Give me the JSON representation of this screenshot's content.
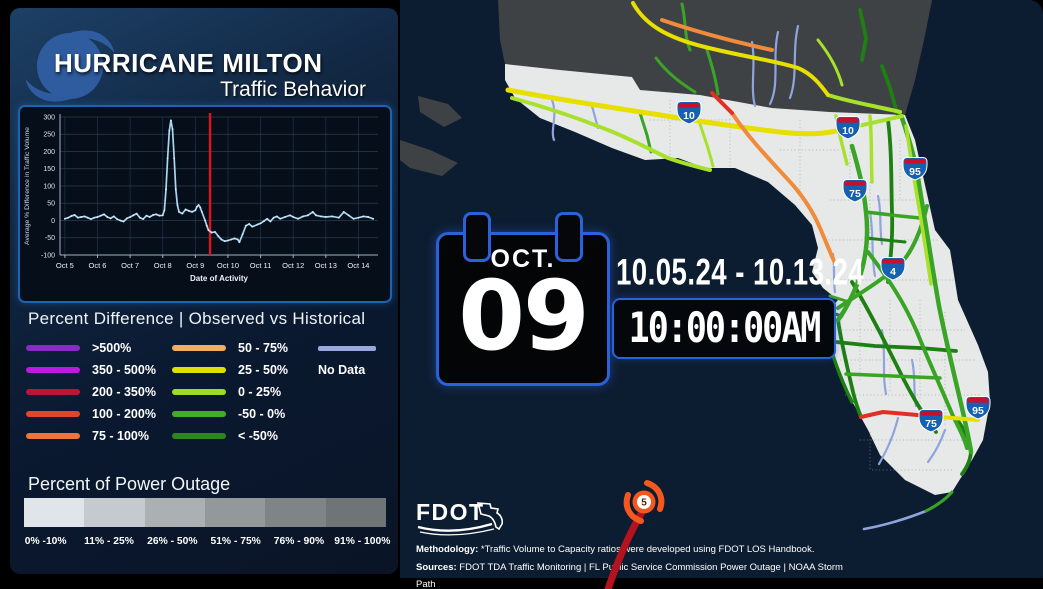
{
  "header": {
    "title": "HURRICANE MILTON",
    "subtitle": "Traffic Behavior"
  },
  "chart_data": {
    "type": "line",
    "title": "",
    "xlabel": "Date of Activity",
    "ylabel": "Average % Difference in Traffic Volume",
    "xlim": [
      4.85,
      14.6
    ],
    "ylim": [
      -100,
      300
    ],
    "y_ticks": [
      300,
      250,
      200,
      150,
      100,
      50,
      0,
      -50,
      -100
    ],
    "x_tick_days": [
      5,
      6,
      7,
      8,
      9,
      10,
      11,
      12,
      13,
      14
    ],
    "x_tick_labels": [
      "Oct 5",
      "Oct 6",
      "Oct 7",
      "Oct 8",
      "Oct 9",
      "Oct 10",
      "Oct 11",
      "Oct 12",
      "Oct 13",
      "Oct 14"
    ],
    "grid": true,
    "line_color": "#a9d7ef",
    "series": [
      {
        "name": "Average % Difference in Traffic Volume",
        "x": [
          5.0,
          5.1,
          5.2,
          5.3,
          5.4,
          5.5,
          5.6,
          5.7,
          5.8,
          5.9,
          6.0,
          6.1,
          6.2,
          6.3,
          6.4,
          6.5,
          6.6,
          6.7,
          6.8,
          6.9,
          7.0,
          7.1,
          7.2,
          7.3,
          7.4,
          7.5,
          7.6,
          7.7,
          7.8,
          7.9,
          8.0,
          8.05,
          8.1,
          8.15,
          8.2,
          8.25,
          8.3,
          8.35,
          8.4,
          8.45,
          8.5,
          8.6,
          8.7,
          8.8,
          8.9,
          9.0,
          9.05,
          9.1,
          9.15,
          9.2,
          9.3,
          9.35,
          9.4,
          9.5,
          9.6,
          9.7,
          9.8,
          9.9,
          10.0,
          10.1,
          10.2,
          10.3,
          10.35,
          10.45,
          10.55,
          10.65,
          10.75,
          10.9,
          11.0,
          11.1,
          11.2,
          11.3,
          11.4,
          11.5,
          11.6,
          11.75,
          11.9,
          12.0,
          12.15,
          12.3,
          12.45,
          12.6,
          12.7,
          12.85,
          13.0,
          13.2,
          13.4,
          13.55,
          13.7,
          13.85,
          14.0,
          14.15,
          14.3,
          14.45
        ],
        "y": [
          5,
          8,
          13,
          16,
          8,
          10,
          12,
          8,
          4,
          8,
          10,
          14,
          18,
          10,
          6,
          12,
          4,
          0,
          -3,
          6,
          10,
          15,
          20,
          8,
          4,
          14,
          10,
          16,
          18,
          14,
          15,
          30,
          90,
          180,
          260,
          290,
          265,
          180,
          90,
          45,
          25,
          20,
          32,
          28,
          25,
          30,
          40,
          45,
          38,
          25,
          0,
          -15,
          -28,
          -35,
          -33,
          -45,
          -55,
          -60,
          -58,
          -55,
          -52,
          -55,
          -63,
          -40,
          -15,
          -10,
          -18,
          -12,
          -8,
          -2,
          5,
          -3,
          8,
          12,
          5,
          10,
          15,
          10,
          5,
          12,
          15,
          25,
          15,
          12,
          10,
          12,
          8,
          25,
          15,
          5,
          8,
          12,
          10,
          5
        ]
      }
    ],
    "annotations": [
      {
        "type": "vline",
        "x": 9.45,
        "color": "#e0151b"
      }
    ]
  },
  "percent_difference": {
    "title": "Percent Difference | Observed vs Historical",
    "items": [
      {
        "label": ">500%",
        "color": "#8a2bc8"
      },
      {
        "label": "350 - 500%",
        "color": "#bf18e0"
      },
      {
        "label": "200 - 350%",
        "color": "#bd1535"
      },
      {
        "label": "100 - 200%",
        "color": "#e0462a"
      },
      {
        "label": "75 - 100%",
        "color": "#ee7439"
      },
      {
        "label": "50 - 75%",
        "color": "#f2ae5f"
      },
      {
        "label": "25 - 50%",
        "color": "#dfe000"
      },
      {
        "label": "0 - 25%",
        "color": "#9cdc23"
      },
      {
        "label": "-50 - 0%",
        "color": "#3fae2a"
      },
      {
        "label": "< -50%",
        "color": "#2d851d"
      }
    ],
    "no_data": {
      "label": "No Data",
      "color": "#97a8dd"
    }
  },
  "power_outage": {
    "title": "Percent of Power Outage",
    "bins": [
      {
        "label": "0% -10%",
        "color": "#dfe5e8"
      },
      {
        "label": "11% - 25%",
        "color": "#c4cacd"
      },
      {
        "label": "26% - 50%",
        "color": "#abb0b3"
      },
      {
        "label": "51% - 75%",
        "color": "#93989b"
      },
      {
        "label": "76% - 90%",
        "color": "#7f8487"
      },
      {
        "label": "91% - 100%",
        "color": "#6f7477"
      }
    ]
  },
  "date_display": {
    "month": "OCT.",
    "day": "09",
    "range": "10.05.24 - 10.13.24",
    "time": "10:00:00AM"
  },
  "map": {
    "region": "Florida",
    "shields": [
      {
        "route": "10"
      },
      {
        "route": "10"
      },
      {
        "route": "75"
      },
      {
        "route": "95"
      },
      {
        "route": "4"
      },
      {
        "route": "75"
      },
      {
        "route": "95"
      }
    ],
    "storm": {
      "category": "5"
    }
  },
  "footer": {
    "logo": "FDOT",
    "methodology_label": "Methodology:",
    "methodology": "*Traffic Volume to Capacity ratios were developed using FDOT LOS Handbook.",
    "sources_label": "Sources:",
    "sources": "FDOT TDA Traffic Monitoring  | FL Public Service Commission Power Outage | NOAA Storm Path"
  }
}
